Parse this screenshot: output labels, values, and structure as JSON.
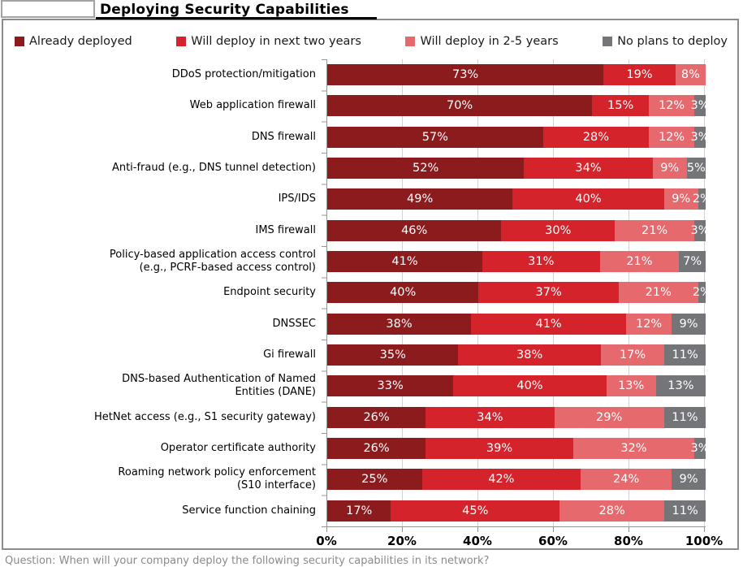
{
  "title": "Deploying Security Capabilities",
  "legend": [
    {
      "label": "Already deployed",
      "color": "#8c1b1e"
    },
    {
      "label": "Will deploy in next two years",
      "color": "#d5232b"
    },
    {
      "label": "Will deploy in 2-5 years",
      "color": "#e6696e"
    },
    {
      "label": "No plans to deploy",
      "color": "#747579"
    }
  ],
  "chart_data": {
    "type": "bar",
    "orientation": "horizontal",
    "stacked": true,
    "title": "Deploying Security Capabilities",
    "xlim": [
      0,
      100
    ],
    "grid": true,
    "x_ticks": [
      "0%",
      "20%",
      "40%",
      "60%",
      "80%",
      "100%"
    ],
    "categories": [
      "DDoS protection/mitigation",
      "Web application firewall",
      "DNS firewall",
      "Anti-fraud (e.g., DNS tunnel detection)",
      "IPS/IDS",
      "IMS firewall",
      "Policy-based application access control\n(e.g., PCRF-based access control)",
      "Endpoint security",
      "DNSSEC",
      "Gi firewall",
      "DNS-based Authentication of Named\nEntities (DANE)",
      "HetNet access (e.g., S1 security gateway)",
      "Operator certificate authority",
      "Roaming network policy enforcement\n(S10 interface)",
      "Service function chaining"
    ],
    "series": [
      {
        "name": "Already deployed",
        "color": "#8c1b1e",
        "values": [
          73,
          70,
          57,
          52,
          49,
          46,
          41,
          40,
          38,
          35,
          33,
          26,
          26,
          25,
          17
        ]
      },
      {
        "name": "Will deploy in next two years",
        "color": "#d5232b",
        "values": [
          19,
          15,
          28,
          34,
          40,
          30,
          31,
          37,
          41,
          38,
          40,
          34,
          39,
          42,
          45
        ]
      },
      {
        "name": "Will deploy in 2-5 years",
        "color": "#e6696e",
        "values": [
          8,
          12,
          12,
          9,
          9,
          21,
          21,
          21,
          12,
          17,
          13,
          29,
          32,
          24,
          28
        ]
      },
      {
        "name": "No plans to deploy",
        "color": "#747579",
        "values": [
          0,
          3,
          3,
          5,
          2,
          3,
          7,
          2,
          9,
          11,
          13,
          11,
          3,
          9,
          11
        ]
      }
    ],
    "value_label_suffix": "%"
  },
  "footer": {
    "caption": "Question: When will your company deploy the following security capabilities in its network?"
  }
}
